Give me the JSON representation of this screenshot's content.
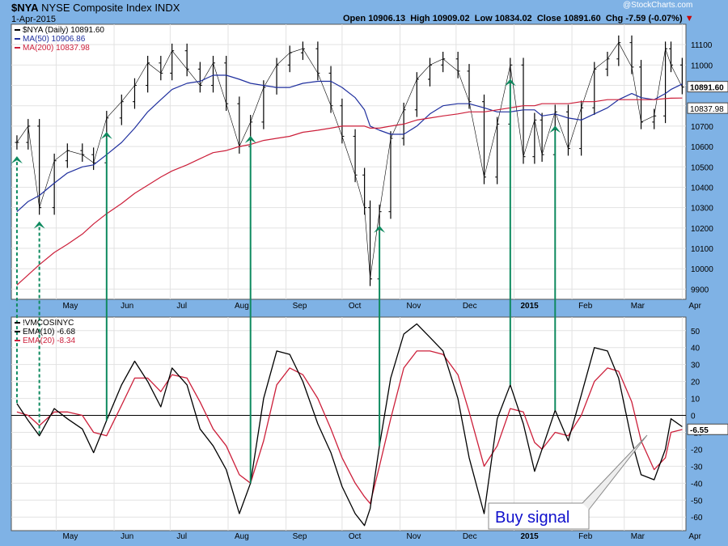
{
  "header": {
    "symbol": "$NYA",
    "name": "NYSE Composite Index",
    "exchange": "INDX",
    "date": "1-Apr-2015",
    "open_label": "Open",
    "open": "10906.13",
    "high_label": "High",
    "high": "10909.02",
    "low_label": "Low",
    "low": "10834.02",
    "close_label": "Close",
    "close": "10891.60",
    "chg_label": "Chg",
    "chg": "-7.59 (-0.07%)",
    "watermark": "@StockCharts.com"
  },
  "colors": {
    "price": "#000000",
    "ma50": "#1f2f9e",
    "ma200": "#cc1f3a",
    "ema10": "#000000",
    "ema20": "#cc1f3a",
    "arrow": "#0e8a5f",
    "annotation": "#1010cc"
  },
  "chart_data": [
    {
      "type": "line",
      "title": "$NYA NYSE Composite Index INDX",
      "legend_position": "top-left",
      "legend": [
        {
          "label": "$NYA (Daily) 10891.60",
          "color": "#000000"
        },
        {
          "label": "MA(50) 10906.86",
          "color": "#1f2f9e"
        },
        {
          "label": "MA(200) 10837.98",
          "color": "#cc1f3a"
        }
      ],
      "x": [
        "2014-04-10",
        "2014-04-16",
        "2014-04-22",
        "2014-04-30",
        "2014-05-07",
        "2014-05-15",
        "2014-05-21",
        "2014-05-28",
        "2014-06-05",
        "2014-06-12",
        "2014-06-19",
        "2014-06-26",
        "2014-07-02",
        "2014-07-10",
        "2014-07-17",
        "2014-07-24",
        "2014-07-31",
        "2014-08-07",
        "2014-08-13",
        "2014-08-20",
        "2014-08-27",
        "2014-09-03",
        "2014-09-10",
        "2014-09-18",
        "2014-09-25",
        "2014-10-01",
        "2014-10-08",
        "2014-10-13",
        "2014-10-16",
        "2014-10-21",
        "2014-10-27",
        "2014-11-03",
        "2014-11-10",
        "2014-11-17",
        "2014-11-24",
        "2014-12-02",
        "2014-12-08",
        "2014-12-16",
        "2014-12-23",
        "2014-12-30",
        "2015-01-06",
        "2015-01-12",
        "2015-01-16",
        "2015-01-23",
        "2015-01-30",
        "2015-02-06",
        "2015-02-13",
        "2015-02-20",
        "2015-02-26",
        "2015-03-05",
        "2015-03-10",
        "2015-03-17",
        "2015-03-23",
        "2015-03-26",
        "2015-04-01"
      ],
      "series": [
        {
          "name": "$NYA (Daily) 10891.60",
          "values": [
            10620,
            10700,
            10300,
            10530,
            10580,
            10560,
            10520,
            10740,
            10820,
            10900,
            11010,
            10960,
            11070,
            10980,
            10900,
            11010,
            10810,
            10600,
            10720,
            10890,
            11000,
            11060,
            11080,
            10960,
            10800,
            10650,
            10460,
            10300,
            9950,
            10280,
            10640,
            10780,
            10930,
            11000,
            11030,
            10970,
            10820,
            10450,
            10710,
            11000,
            10550,
            10730,
            10560,
            10770,
            10590,
            10790,
            10980,
            11030,
            11110,
            10990,
            10720,
            10750,
            11080,
            11000,
            10891.6
          ]
        },
        {
          "name": "MA(50) 10906.86",
          "values": [
            10280,
            10330,
            10360,
            10420,
            10470,
            10500,
            10510,
            10560,
            10620,
            10690,
            10770,
            10830,
            10880,
            10910,
            10920,
            10950,
            10950,
            10930,
            10910,
            10900,
            10890,
            10890,
            10910,
            10920,
            10920,
            10890,
            10840,
            10780,
            10700,
            10680,
            10660,
            10660,
            10700,
            10760,
            10800,
            10810,
            10810,
            10790,
            10770,
            10770,
            10780,
            10780,
            10750,
            10760,
            10740,
            10730,
            10760,
            10790,
            10830,
            10860,
            10840,
            10830,
            10860,
            10880,
            10906.86
          ]
        },
        {
          "name": "MA(200) 10837.98",
          "values": [
            9920,
            9970,
            10020,
            10080,
            10120,
            10170,
            10220,
            10270,
            10320,
            10370,
            10410,
            10450,
            10480,
            10510,
            10540,
            10570,
            10580,
            10600,
            10610,
            10630,
            10640,
            10650,
            10670,
            10680,
            10690,
            10700,
            10700,
            10700,
            10690,
            10690,
            10700,
            10710,
            10730,
            10740,
            10750,
            10760,
            10770,
            10770,
            10780,
            10790,
            10800,
            10800,
            10810,
            10810,
            10810,
            10820,
            10820,
            10830,
            10830,
            10830,
            10830,
            10830,
            10835,
            10837,
            10837.98
          ]
        }
      ],
      "ylim": [
        9850,
        11200
      ],
      "y_ticks": [
        9900,
        10000,
        10100,
        10200,
        10300,
        10400,
        10500,
        10600,
        10700,
        10800,
        10900,
        11000,
        11100
      ],
      "last_value_labels": [
        "10891.60",
        "10837.98"
      ],
      "grid": true
    },
    {
      "type": "line",
      "title": "!VMCOSINYC",
      "legend_position": "top-left",
      "legend": [
        {
          "label": "!VMCOSINYC",
          "color": "#000000"
        },
        {
          "label": "EMA(10) -6.68",
          "color": "#000000"
        },
        {
          "label": "EMA(20) -8.34",
          "color": "#cc1f3a"
        }
      ],
      "x": [
        "2014-04-10",
        "2014-04-16",
        "2014-04-22",
        "2014-04-30",
        "2014-05-07",
        "2014-05-15",
        "2014-05-21",
        "2014-05-28",
        "2014-06-05",
        "2014-06-12",
        "2014-06-19",
        "2014-06-26",
        "2014-07-02",
        "2014-07-10",
        "2014-07-17",
        "2014-07-24",
        "2014-07-31",
        "2014-08-07",
        "2014-08-13",
        "2014-08-20",
        "2014-08-27",
        "2014-09-03",
        "2014-09-10",
        "2014-09-18",
        "2014-09-25",
        "2014-10-01",
        "2014-10-08",
        "2014-10-13",
        "2014-10-16",
        "2014-10-21",
        "2014-10-27",
        "2014-11-03",
        "2014-11-10",
        "2014-11-17",
        "2014-11-24",
        "2014-12-02",
        "2014-12-08",
        "2014-12-16",
        "2014-12-23",
        "2014-12-30",
        "2015-01-06",
        "2015-01-12",
        "2015-01-16",
        "2015-01-23",
        "2015-01-30",
        "2015-02-06",
        "2015-02-13",
        "2015-02-20",
        "2015-02-26",
        "2015-03-05",
        "2015-03-10",
        "2015-03-17",
        "2015-03-23",
        "2015-03-26",
        "2015-04-01"
      ],
      "series": [
        {
          "name": "EMA(10) -6.68",
          "values": [
            7,
            -3,
            -12,
            4,
            -2,
            -8,
            -22,
            -3,
            18,
            32,
            20,
            5,
            28,
            18,
            -8,
            -18,
            -32,
            -58,
            -40,
            10,
            38,
            36,
            20,
            -5,
            -22,
            -42,
            -58,
            -65,
            -55,
            -18,
            22,
            48,
            54,
            46,
            38,
            10,
            -25,
            -58,
            -2,
            18,
            -5,
            -33,
            -20,
            3,
            -15,
            12,
            40,
            38,
            22,
            -15,
            -35,
            -38,
            -20,
            -2,
            -6.68
          ]
        },
        {
          "name": "EMA(20) -8.34",
          "values": [
            2,
            0,
            -6,
            2,
            2,
            0,
            -10,
            -12,
            6,
            22,
            22,
            14,
            24,
            22,
            8,
            -8,
            -18,
            -35,
            -40,
            -15,
            18,
            28,
            24,
            10,
            -8,
            -25,
            -40,
            -48,
            -52,
            -30,
            -2,
            28,
            38,
            38,
            36,
            24,
            2,
            -30,
            -18,
            4,
            2,
            -16,
            -20,
            -10,
            -12,
            0,
            20,
            28,
            26,
            8,
            -15,
            -32,
            -25,
            -10,
            -8.34
          ]
        }
      ],
      "ylim": [
        -68,
        58
      ],
      "y_ticks": [
        -60,
        -50,
        -40,
        -30,
        -20,
        -10,
        0,
        10,
        20,
        30,
        40,
        50
      ],
      "last_value_label": "-6.55",
      "reference_line": 0,
      "grid": true,
      "annotation": "Buy signal"
    }
  ],
  "x_axis_labels": [
    "May",
    "Jun",
    "Jul",
    "Aug",
    "Sep",
    "Oct",
    "Nov",
    "Dec",
    "2015",
    "Feb",
    "Mar",
    "Apr"
  ],
  "signals": [
    "2014-04-10",
    "2014-04-22",
    "2014-05-28",
    "2014-08-13",
    "2014-10-21",
    "2014-12-30",
    "2015-01-23"
  ]
}
